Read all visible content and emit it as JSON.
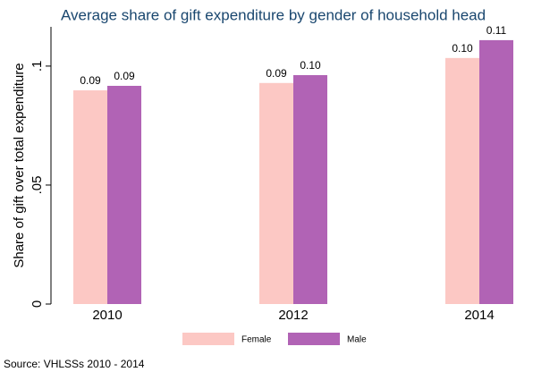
{
  "chart_data": {
    "type": "bar",
    "title": "Average share of gift expenditure by gender of household head",
    "y_label": "Share of gift over total expenditure",
    "source": "Source: VHLSSs 2010 - 2014",
    "categories": [
      "2010",
      "2012",
      "2014"
    ],
    "series": [
      {
        "name": "Female",
        "color": "#fcc8c4",
        "values": [
          0.0898,
          0.0929,
          0.1034
        ],
        "value_labels": [
          "0.09",
          "0.09",
          "0.10"
        ]
      },
      {
        "name": "Male",
        "color": "#b163b5",
        "values": [
          0.0917,
          0.0962,
          0.1109
        ],
        "value_labels": [
          "0.09",
          "0.10",
          "0.11"
        ]
      }
    ],
    "ylim": [
      0,
      0.1165
    ],
    "yticks": [
      0,
      {
        "value": 0.05,
        "label": ".05"
      },
      {
        "value": 0.1,
        "label": ".1"
      }
    ],
    "grid": false
  }
}
